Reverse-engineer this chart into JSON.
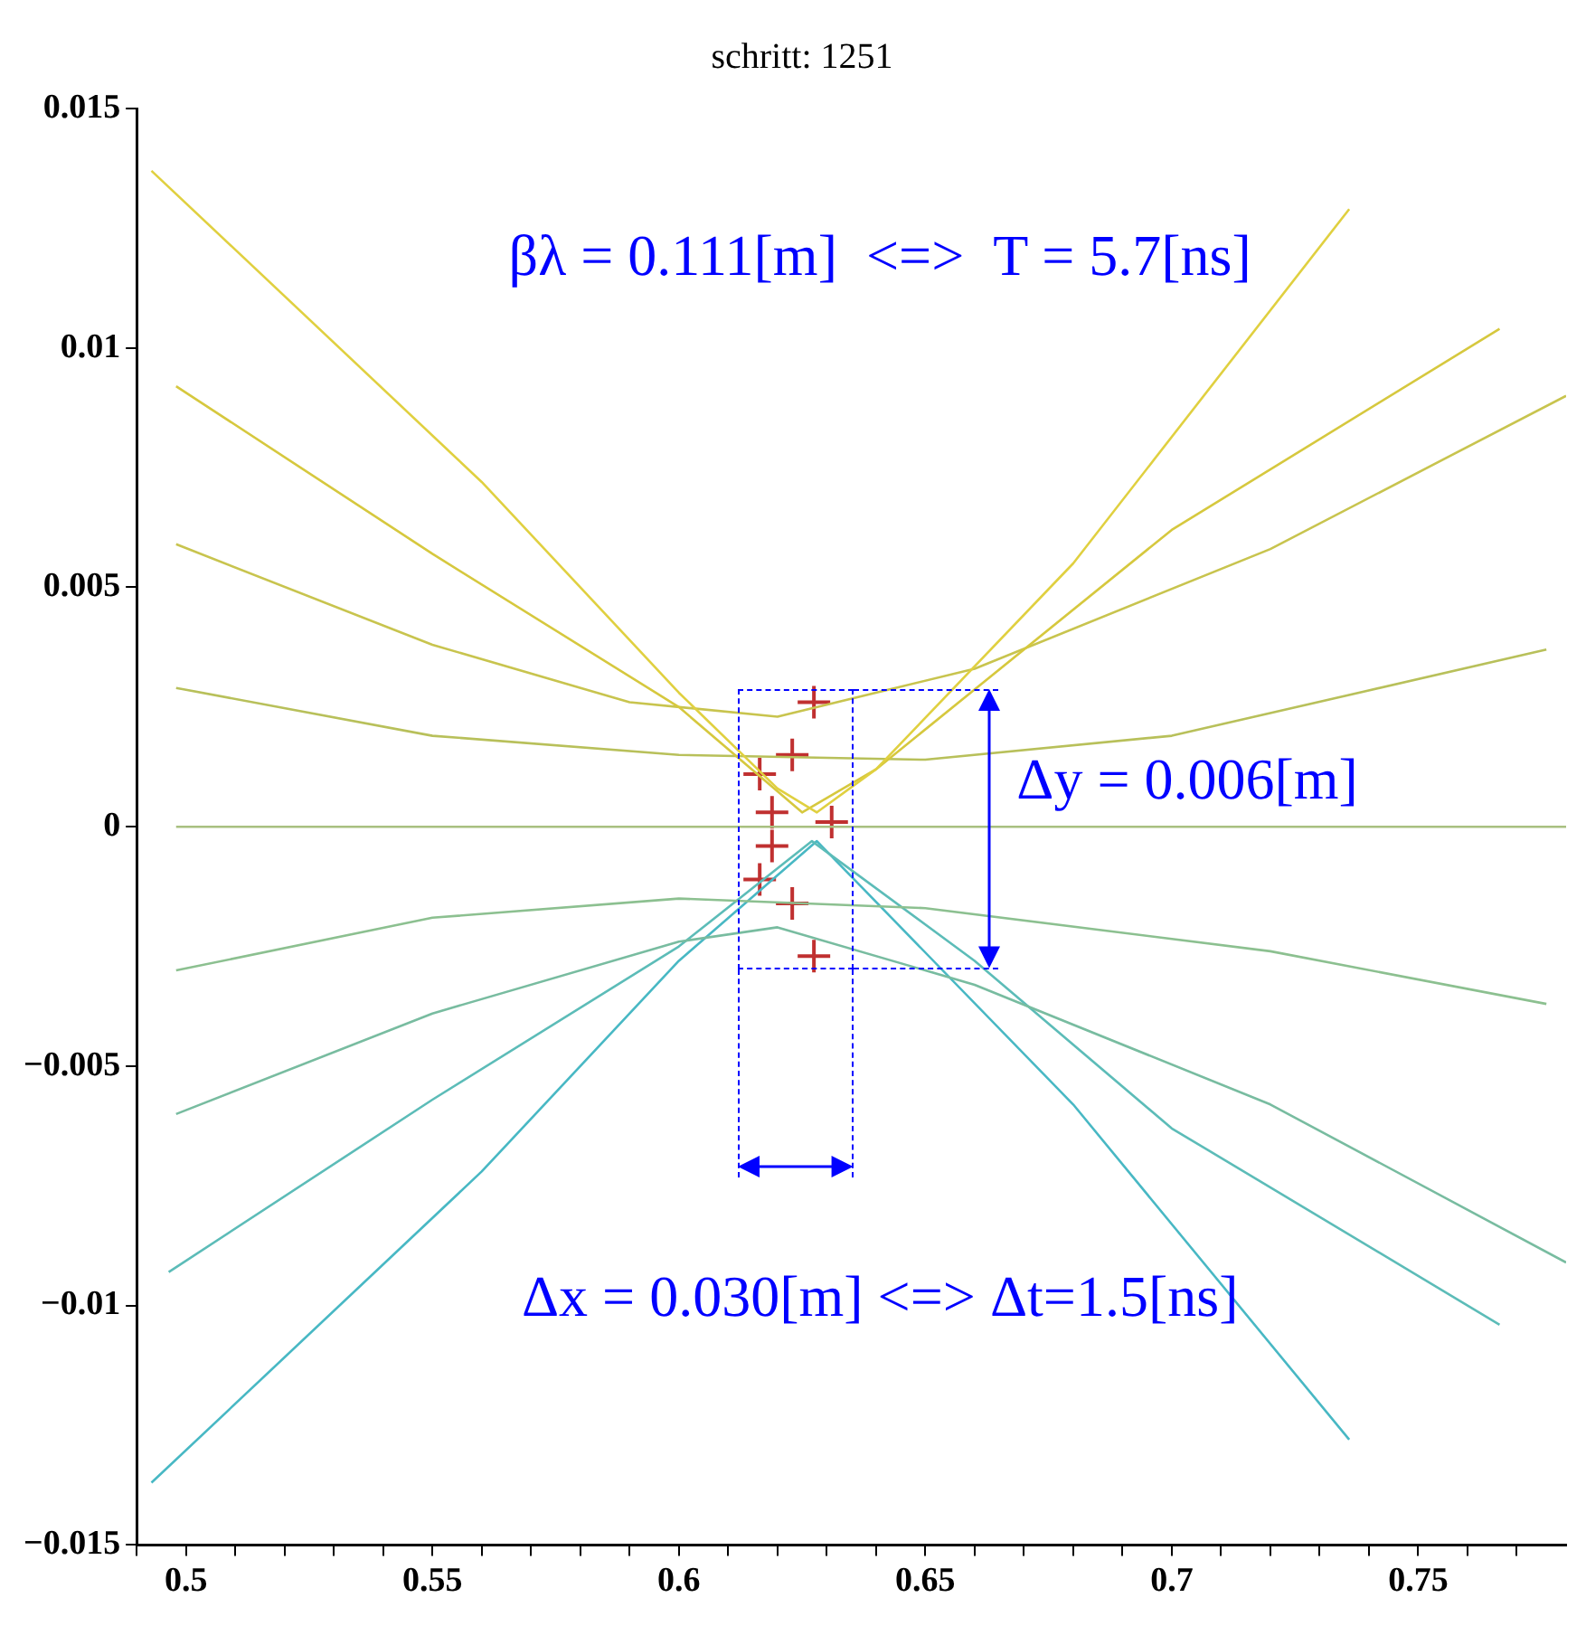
{
  "chart_data": {
    "type": "line",
    "title": "schritt: 1251",
    "annotations": [
      "βλ = 0.111[m]  <=>  T = 5.7[ns]",
      "Δy = 0.006[m]",
      "Δx = 0.030[m] <=> Δt=1.5[ns]"
    ],
    "xlim": [
      0.49,
      0.78
    ],
    "ylim": [
      -0.015,
      0.015
    ],
    "xticks": [
      {
        "value": 0.49,
        "label": null
      },
      0.5,
      {
        "value": 0.51,
        "label": null
      },
      {
        "value": 0.52,
        "label": null
      },
      {
        "value": 0.53,
        "label": null
      },
      {
        "value": 0.54,
        "label": null
      },
      0.55,
      {
        "value": 0.56,
        "label": null
      },
      {
        "value": 0.57,
        "label": null
      },
      {
        "value": 0.58,
        "label": null
      },
      {
        "value": 0.59,
        "label": null
      },
      0.6,
      {
        "value": 0.61,
        "label": null
      },
      {
        "value": 0.62,
        "label": null
      },
      {
        "value": 0.63,
        "label": null
      },
      {
        "value": 0.64,
        "label": null
      },
      0.65,
      {
        "value": 0.66,
        "label": null
      },
      {
        "value": 0.67,
        "label": null
      },
      {
        "value": 0.68,
        "label": null
      },
      {
        "value": 0.69,
        "label": null
      },
      0.7,
      {
        "value": 0.71,
        "label": null
      },
      {
        "value": 0.72,
        "label": null
      },
      {
        "value": 0.73,
        "label": null
      },
      {
        "value": 0.74,
        "label": null
      },
      0.75,
      {
        "value": 0.76,
        "label": null
      },
      {
        "value": 0.77,
        "label": null
      }
    ],
    "yticks": [
      {
        "value": -0.015,
        "label": "−0.015"
      },
      {
        "value": -0.01,
        "label": "−0.01"
      },
      {
        "value": -0.005,
        "label": "−0.005"
      },
      0,
      0.005,
      0.01,
      0.015
    ],
    "grid": false,
    "legend": false,
    "series": [
      {
        "color": "#e0d040",
        "x": [
          0.493,
          0.56,
          0.6,
          0.62,
          0.628,
          0.64,
          0.68,
          0.736
        ],
        "values": [
          0.0137,
          0.0072,
          0.0028,
          0.0008,
          0.0003,
          0.0012,
          0.0055,
          0.0129
        ]
      },
      {
        "color": "#d6c83e",
        "x": [
          0.498,
          0.55,
          0.6,
          0.625,
          0.64,
          0.7,
          0.7665
        ],
        "values": [
          0.0092,
          0.0057,
          0.0025,
          0.0003,
          0.0012,
          0.0062,
          0.0104
        ]
      },
      {
        "color": "#c8c44e",
        "x": [
          0.498,
          0.55,
          0.59,
          0.62,
          0.66,
          0.72,
          0.78
        ],
        "values": [
          0.0059,
          0.0038,
          0.0026,
          0.0023,
          0.0033,
          0.0058,
          0.009
        ]
      },
      {
        "color": "#b8c05a",
        "x": [
          0.498,
          0.55,
          0.6,
          0.65,
          0.7,
          0.776
        ],
        "values": [
          0.0029,
          0.0019,
          0.0015,
          0.0014,
          0.0019,
          0.0037
        ]
      },
      {
        "color": "#a8c080",
        "x": [
          0.498,
          0.78
        ],
        "values": [
          0,
          0
        ]
      },
      {
        "color": "#8cc090",
        "x": [
          0.498,
          0.55,
          0.6,
          0.65,
          0.72,
          0.776
        ],
        "values": [
          -0.003,
          -0.0019,
          -0.0015,
          -0.0017,
          -0.0026,
          -0.0037
        ]
      },
      {
        "color": "#78bca0",
        "x": [
          0.498,
          0.55,
          0.6,
          0.62,
          0.66,
          0.72,
          0.78
        ],
        "values": [
          -0.006,
          -0.0039,
          -0.0024,
          -0.0021,
          -0.0033,
          -0.0058,
          -0.0091
        ]
      },
      {
        "color": "#5cbcb8",
        "x": [
          0.4965,
          0.55,
          0.6,
          0.627,
          0.66,
          0.7,
          0.7665
        ],
        "values": [
          -0.0093,
          -0.0057,
          -0.0025,
          -0.0003,
          -0.0028,
          -0.0063,
          -0.0104
        ]
      },
      {
        "color": "#48b8c4",
        "x": [
          0.493,
          0.56,
          0.6,
          0.628,
          0.68,
          0.736
        ],
        "values": [
          -0.0137,
          -0.0072,
          -0.0028,
          -0.0003,
          -0.0058,
          -0.0128
        ]
      },
      {
        "type": "scatter",
        "marker": "cross",
        "color": "#c03030",
        "x": [
          0.6274,
          0.623,
          0.6164,
          0.6189,
          0.631,
          0.6189,
          0.6164,
          0.623,
          0.6274
        ],
        "values": [
          0.0026,
          0.0015,
          0.0011,
          0.0003,
          0.0001,
          -0.0004,
          -0.0011,
          -0.0016,
          -0.0027
        ]
      }
    ]
  }
}
